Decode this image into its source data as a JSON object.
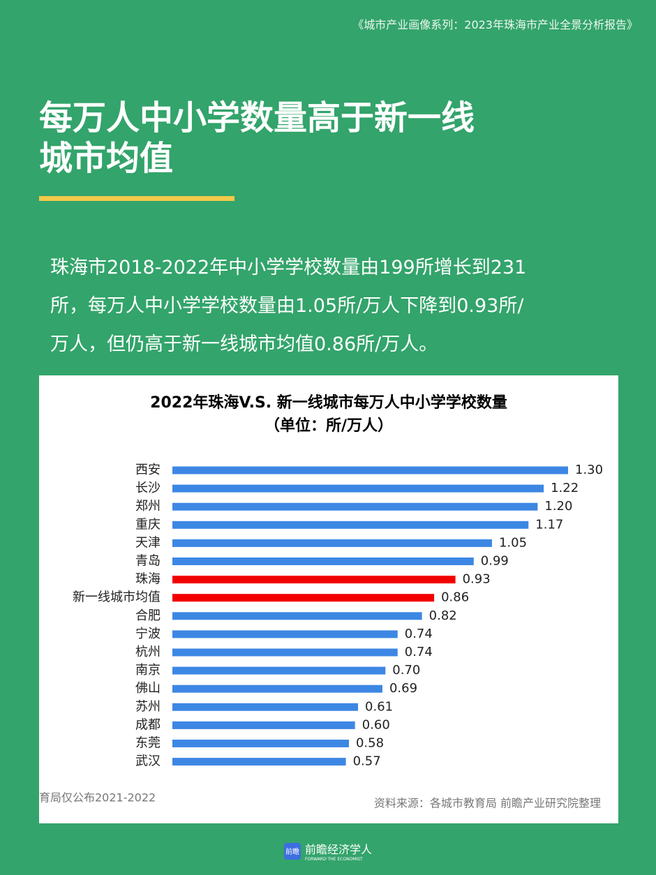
{
  "header": {
    "text": "《城市产业画像系列：2023年珠海市产业全景分析报告》"
  },
  "title": {
    "lines": [
      "每万人中小学数量高于新一线",
      "城市均值"
    ]
  },
  "paragraph": {
    "lines": [
      "珠海市2018-2022年中小学学校数量由199所增长到231",
      "所，每万人中小学学校数量由1.05所/万人下降到0.93所/",
      "万人，但仍高于新一线城市均值0.86所/万人。"
    ]
  },
  "chart_data": {
    "type": "hbar",
    "title": "2022年珠海V.S. 新一线城市每万人中小学学校数量",
    "subtitle": "（单位：所/万人）",
    "categories": [
      "西安",
      "长沙",
      "郑州",
      "重庆",
      "天津",
      "青岛",
      "珠海",
      "新一线城市均值",
      "合肥",
      "宁波",
      "杭州",
      "南京",
      "佛山",
      "苏州",
      "成都",
      "东莞",
      "武汉"
    ],
    "values": [
      1.3,
      1.22,
      1.2,
      1.17,
      1.05,
      0.99,
      0.93,
      0.86,
      0.82,
      0.74,
      0.74,
      0.7,
      0.69,
      0.61,
      0.6,
      0.58,
      0.57
    ],
    "value_labels": [
      "1.30",
      "1.22",
      "1.20",
      "1.17",
      "1.05",
      "0.99",
      "0.93",
      "0.86",
      "0.82",
      "0.74",
      "0.74",
      "0.70",
      "0.69",
      "0.61",
      "0.60",
      "0.58",
      "0.57"
    ],
    "colors": [
      "#3d87e4",
      "#3d87e4",
      "#3d87e4",
      "#3d87e4",
      "#3d87e4",
      "#3d87e4",
      "#f20000",
      "#f20000",
      "#3d87e4",
      "#3d87e4",
      "#3d87e4",
      "#3d87e4",
      "#3d87e4",
      "#3d87e4",
      "#3d87e4",
      "#3d87e4",
      "#3d87e4"
    ],
    "note": "育局仅公布2021-2022",
    "source": "资料来源：各城市教育局  前瞻产业研究院整理"
  },
  "footer": {
    "icon": "前瞻",
    "brand": "前瞻经济学人",
    "tagline": "FORWARD·THE ECONOMIST"
  }
}
